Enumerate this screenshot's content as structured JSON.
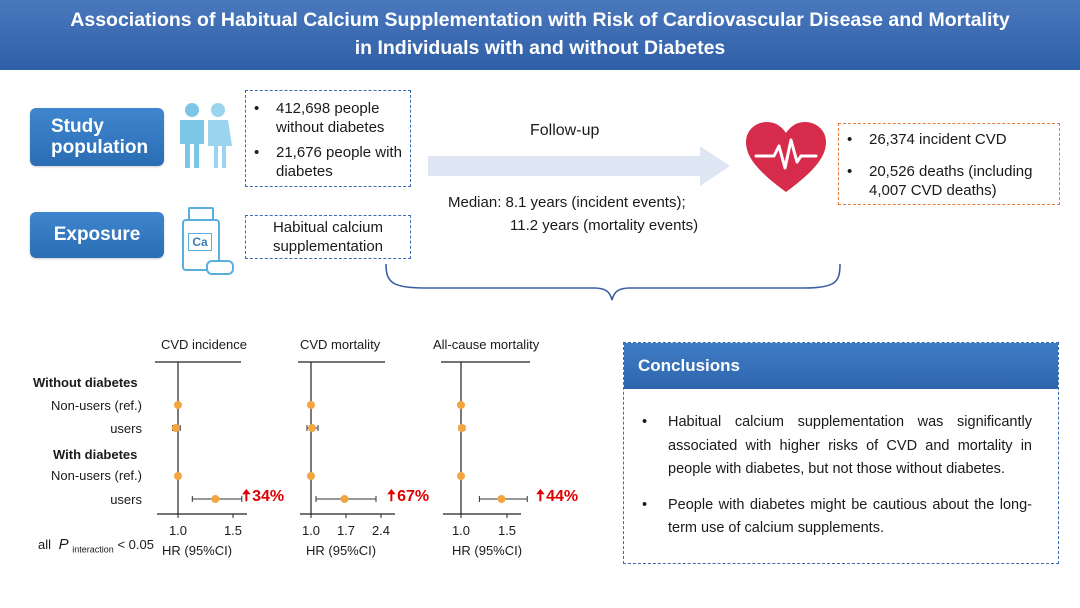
{
  "title": {
    "line1": "Associations of Habitual Calcium Supplementation with Risk of Cardiovascular Disease and Mortality",
    "line2": "in Individuals with and without Diabetes"
  },
  "study_population": {
    "label_line1": "Study",
    "label_line2": "population",
    "bullets": [
      "412,698 people without diabetes",
      "21,676 people with diabetes"
    ]
  },
  "exposure": {
    "label": "Exposure",
    "icon_text": "Ca",
    "text": "Habitual calcium supplementation"
  },
  "follow_up": {
    "label": "Follow-up",
    "median_line1": "Median: 8.1 years (incident events);",
    "median_line2": "11.2 years (mortality events)"
  },
  "outcomes": {
    "bullets": [
      "26,374 incident CVD",
      "20,526 deaths (including 4,007 CVD deaths)"
    ]
  },
  "forest": {
    "rows": {
      "group1": "Without diabetes",
      "nonusers1": "Non-users (ref.)",
      "users1": "users",
      "group2": "With diabetes",
      "nonusers2": "Non-users (ref.)",
      "users2": "users"
    },
    "footnote_all": "all",
    "footnote_p": "P",
    "footnote_sub": "interaction",
    "footnote_val": "< 0.05",
    "axis_label": "HR (95%CI)"
  },
  "chart_data": [
    {
      "type": "forest",
      "title": "CVD incidence",
      "xlabel": "HR (95%CI)",
      "ticks": [
        "1.0",
        "1.5"
      ],
      "xlim": [
        0.95,
        1.6
      ],
      "rows": [
        "Non-users (ref.)",
        "users",
        "Non-users (ref.)",
        "users"
      ],
      "hr": [
        1.0,
        0.98,
        1.0,
        1.34
      ],
      "ci_low": [
        1.0,
        0.95,
        1.0,
        1.13
      ],
      "ci_high": [
        1.0,
        1.02,
        1.0,
        1.58
      ],
      "annotation": "34%"
    },
    {
      "type": "forest",
      "title": "CVD mortality",
      "xlabel": "HR (95%CI)",
      "ticks": [
        "1.0",
        "1.7",
        "2.4"
      ],
      "xlim": [
        0.95,
        2.5
      ],
      "rows": [
        "Non-users (ref.)",
        "users",
        "Non-users (ref.)",
        "users"
      ],
      "hr": [
        1.0,
        1.02,
        1.0,
        1.67
      ],
      "ci_low": [
        1.0,
        0.92,
        1.0,
        1.1
      ],
      "ci_high": [
        1.0,
        1.14,
        1.0,
        2.3
      ],
      "annotation": "67%"
    },
    {
      "type": "forest",
      "title": "All-cause mortality",
      "xlabel": "HR (95%CI)",
      "ticks": [
        "1.0",
        "1.5"
      ],
      "xlim": [
        0.95,
        1.75
      ],
      "rows": [
        "Non-users (ref.)",
        "users",
        "Non-users (ref.)",
        "users"
      ],
      "hr": [
        1.0,
        1.01,
        1.0,
        1.44
      ],
      "ci_low": [
        1.0,
        0.98,
        1.0,
        1.2
      ],
      "ci_high": [
        1.0,
        1.04,
        1.0,
        1.72
      ],
      "annotation": "44%"
    }
  ],
  "conclusions": {
    "heading": "Conclusions",
    "items": [
      "Habitual calcium supplementation was significantly associated with higher risks of CVD and mortality in people with diabetes, but not those without diabetes.",
      "People with diabetes might be cautious about the long-term use of calcium supplements."
    ]
  },
  "colors": {
    "title_bg": "#3566b0",
    "label_bg": "#3079c4",
    "dashed_blue": "#3a6bb0",
    "dashed_orange": "#e07b39",
    "arrow": "#dfe6f3",
    "heart": "#d62b4a",
    "people": "#7cc6e8",
    "point": "#f2a541",
    "highlight": "#e00000"
  },
  "icons": [
    "people-icon",
    "supplement-bottle-icon",
    "heart-pulse-icon",
    "arrow-right-icon",
    "up-arrow-icon"
  ]
}
